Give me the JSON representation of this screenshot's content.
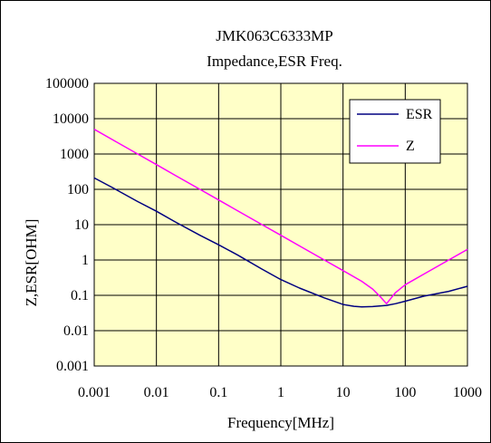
{
  "chart_data": {
    "type": "line",
    "title": "JMK063C6333MP",
    "subtitle": "Impedance,ESR Freq.",
    "xlabel": "Frequency[MHz]",
    "ylabel": "Z,ESR[OHM]",
    "x_scale": "log",
    "y_scale": "log",
    "xlim": [
      0.001,
      1000
    ],
    "ylim": [
      0.001,
      100000
    ],
    "x_ticks": [
      "0.001",
      "0.01",
      "0.1",
      "1",
      "10",
      "100",
      "1000"
    ],
    "y_ticks": [
      "0.001",
      "0.01",
      "0.1",
      "1",
      "10",
      "100",
      "1000",
      "10000",
      "100000"
    ],
    "grid": true,
    "legend_position": "top-right",
    "plot_background": "#ffffc8",
    "series": [
      {
        "name": "ESR",
        "color": "#000080",
        "x": [
          0.001,
          0.002,
          0.005,
          0.01,
          0.02,
          0.05,
          0.1,
          0.2,
          0.5,
          1,
          2,
          5,
          10,
          15,
          20,
          30,
          50,
          70,
          100,
          200,
          500,
          1000
        ],
        "y": [
          210,
          110,
          45,
          24,
          12,
          5,
          2.7,
          1.4,
          0.55,
          0.28,
          0.16,
          0.085,
          0.055,
          0.049,
          0.047,
          0.048,
          0.052,
          0.058,
          0.068,
          0.095,
          0.13,
          0.18
        ]
      },
      {
        "name": "Z",
        "color": "#ff00ff",
        "x": [
          0.001,
          0.002,
          0.005,
          0.01,
          0.02,
          0.05,
          0.1,
          0.2,
          0.5,
          1,
          2,
          5,
          10,
          20,
          30,
          40,
          50,
          70,
          100,
          200,
          500,
          1000
        ],
        "y": [
          5000,
          2500,
          1000,
          500,
          250,
          100,
          50,
          25,
          10,
          5,
          2.5,
          1,
          0.5,
          0.25,
          0.15,
          0.09,
          0.058,
          0.12,
          0.2,
          0.4,
          1.0,
          2.0
        ]
      }
    ]
  }
}
